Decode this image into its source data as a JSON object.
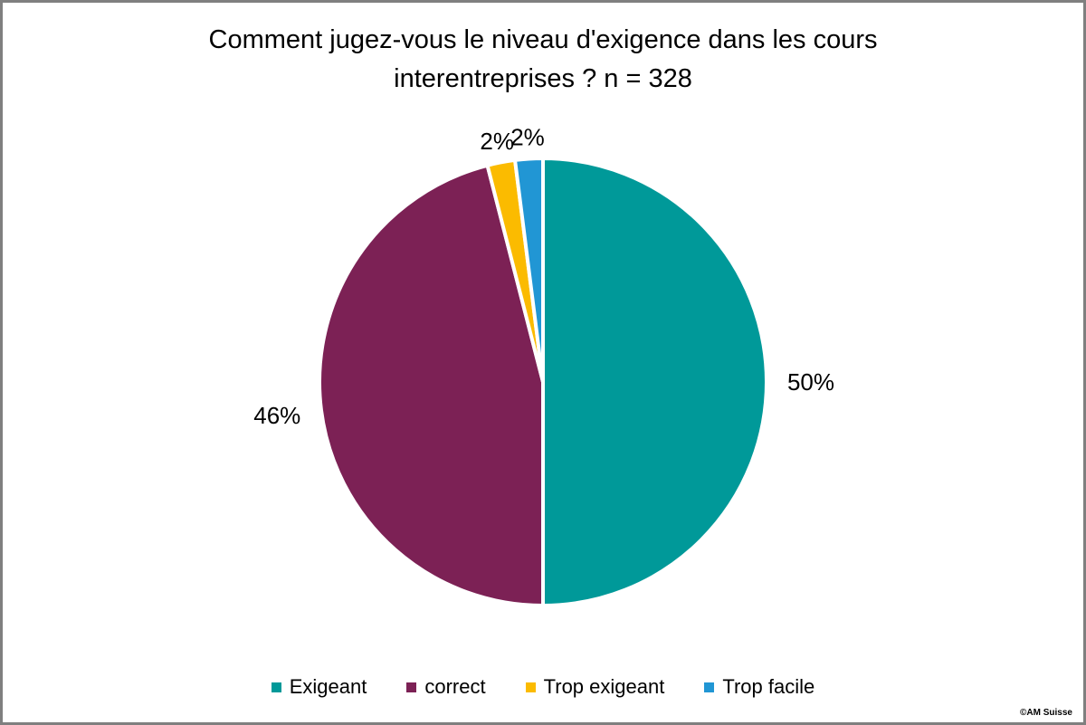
{
  "frame": {
    "copyright": "©AM Suisse"
  },
  "chart_data": {
    "type": "pie",
    "title": "Comment jugez-vous le niveau d'exigence dans les cours interentreprises ? n = 328",
    "n": 328,
    "categories": [
      "Exigeant",
      "correct",
      "Trop exigeant",
      "Trop facile"
    ],
    "values": [
      50,
      46,
      2,
      2
    ],
    "slices": [
      {
        "label": "Exigeant",
        "value": 50,
        "percent_label": "50%",
        "color": "#009999"
      },
      {
        "label": "correct",
        "value": 46,
        "percent_label": "46%",
        "color": "#7C2155"
      },
      {
        "label": "Trop exigeant",
        "value": 2,
        "percent_label": "2%",
        "color": "#FBBB00"
      },
      {
        "label": "Trop facile",
        "value": 2,
        "percent_label": "2%",
        "color": "#2196D4"
      }
    ],
    "start_angle_deg": 0,
    "direction": "clockwise",
    "slice_border_color": "#FFFFFF",
    "legend_position": "bottom",
    "background_color": "#FFFFFF",
    "frame_border_color": "#7F7F7F"
  }
}
